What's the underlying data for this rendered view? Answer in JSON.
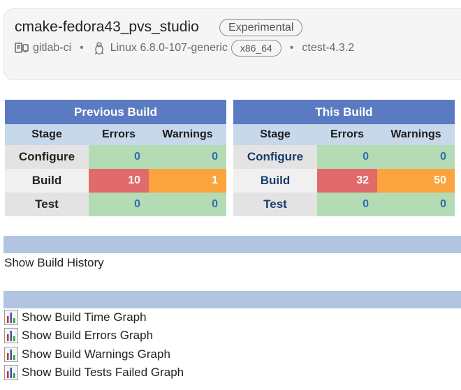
{
  "header": {
    "build_name": "cmake-fedora43_pvs_studio",
    "group_badge": "Experimental",
    "site": "gitlab-ci",
    "os": "Linux 6.8.0-107-generic",
    "arch": "x86_64",
    "ctest": "ctest-4.3.2",
    "separator": "•"
  },
  "comparison": {
    "columns": {
      "stage": "Stage",
      "errors": "Errors",
      "warnings": "Warnings"
    },
    "previous": {
      "title": "Previous Build",
      "rows": [
        {
          "stage": "Configure",
          "errors": "0",
          "warnings": "0"
        },
        {
          "stage": "Build",
          "errors": "10",
          "warnings": "1"
        },
        {
          "stage": "Test",
          "errors": "0",
          "warnings": "0"
        }
      ]
    },
    "current": {
      "title": "This Build",
      "rows": [
        {
          "stage": "Configure",
          "errors": "0",
          "warnings": "0"
        },
        {
          "stage": "Build",
          "errors": "32",
          "warnings": "50"
        },
        {
          "stage": "Test",
          "errors": "0",
          "warnings": "0"
        }
      ]
    }
  },
  "history": {
    "link": "Show Build History"
  },
  "graphs": {
    "icon": "bar-chart-icon",
    "items": [
      "Show Build Time Graph",
      "Show Build Errors Graph",
      "Show Build Warnings Graph",
      "Show Build Tests Failed Graph"
    ]
  },
  "colors": {
    "header_blue": "#5a7bc1",
    "col_head": "#c7d8ea",
    "ok_green": "#b4dcb4",
    "error_red": "#e16a6a",
    "warning_orange": "#fba33c",
    "section_bar": "#b1c5e2"
  }
}
